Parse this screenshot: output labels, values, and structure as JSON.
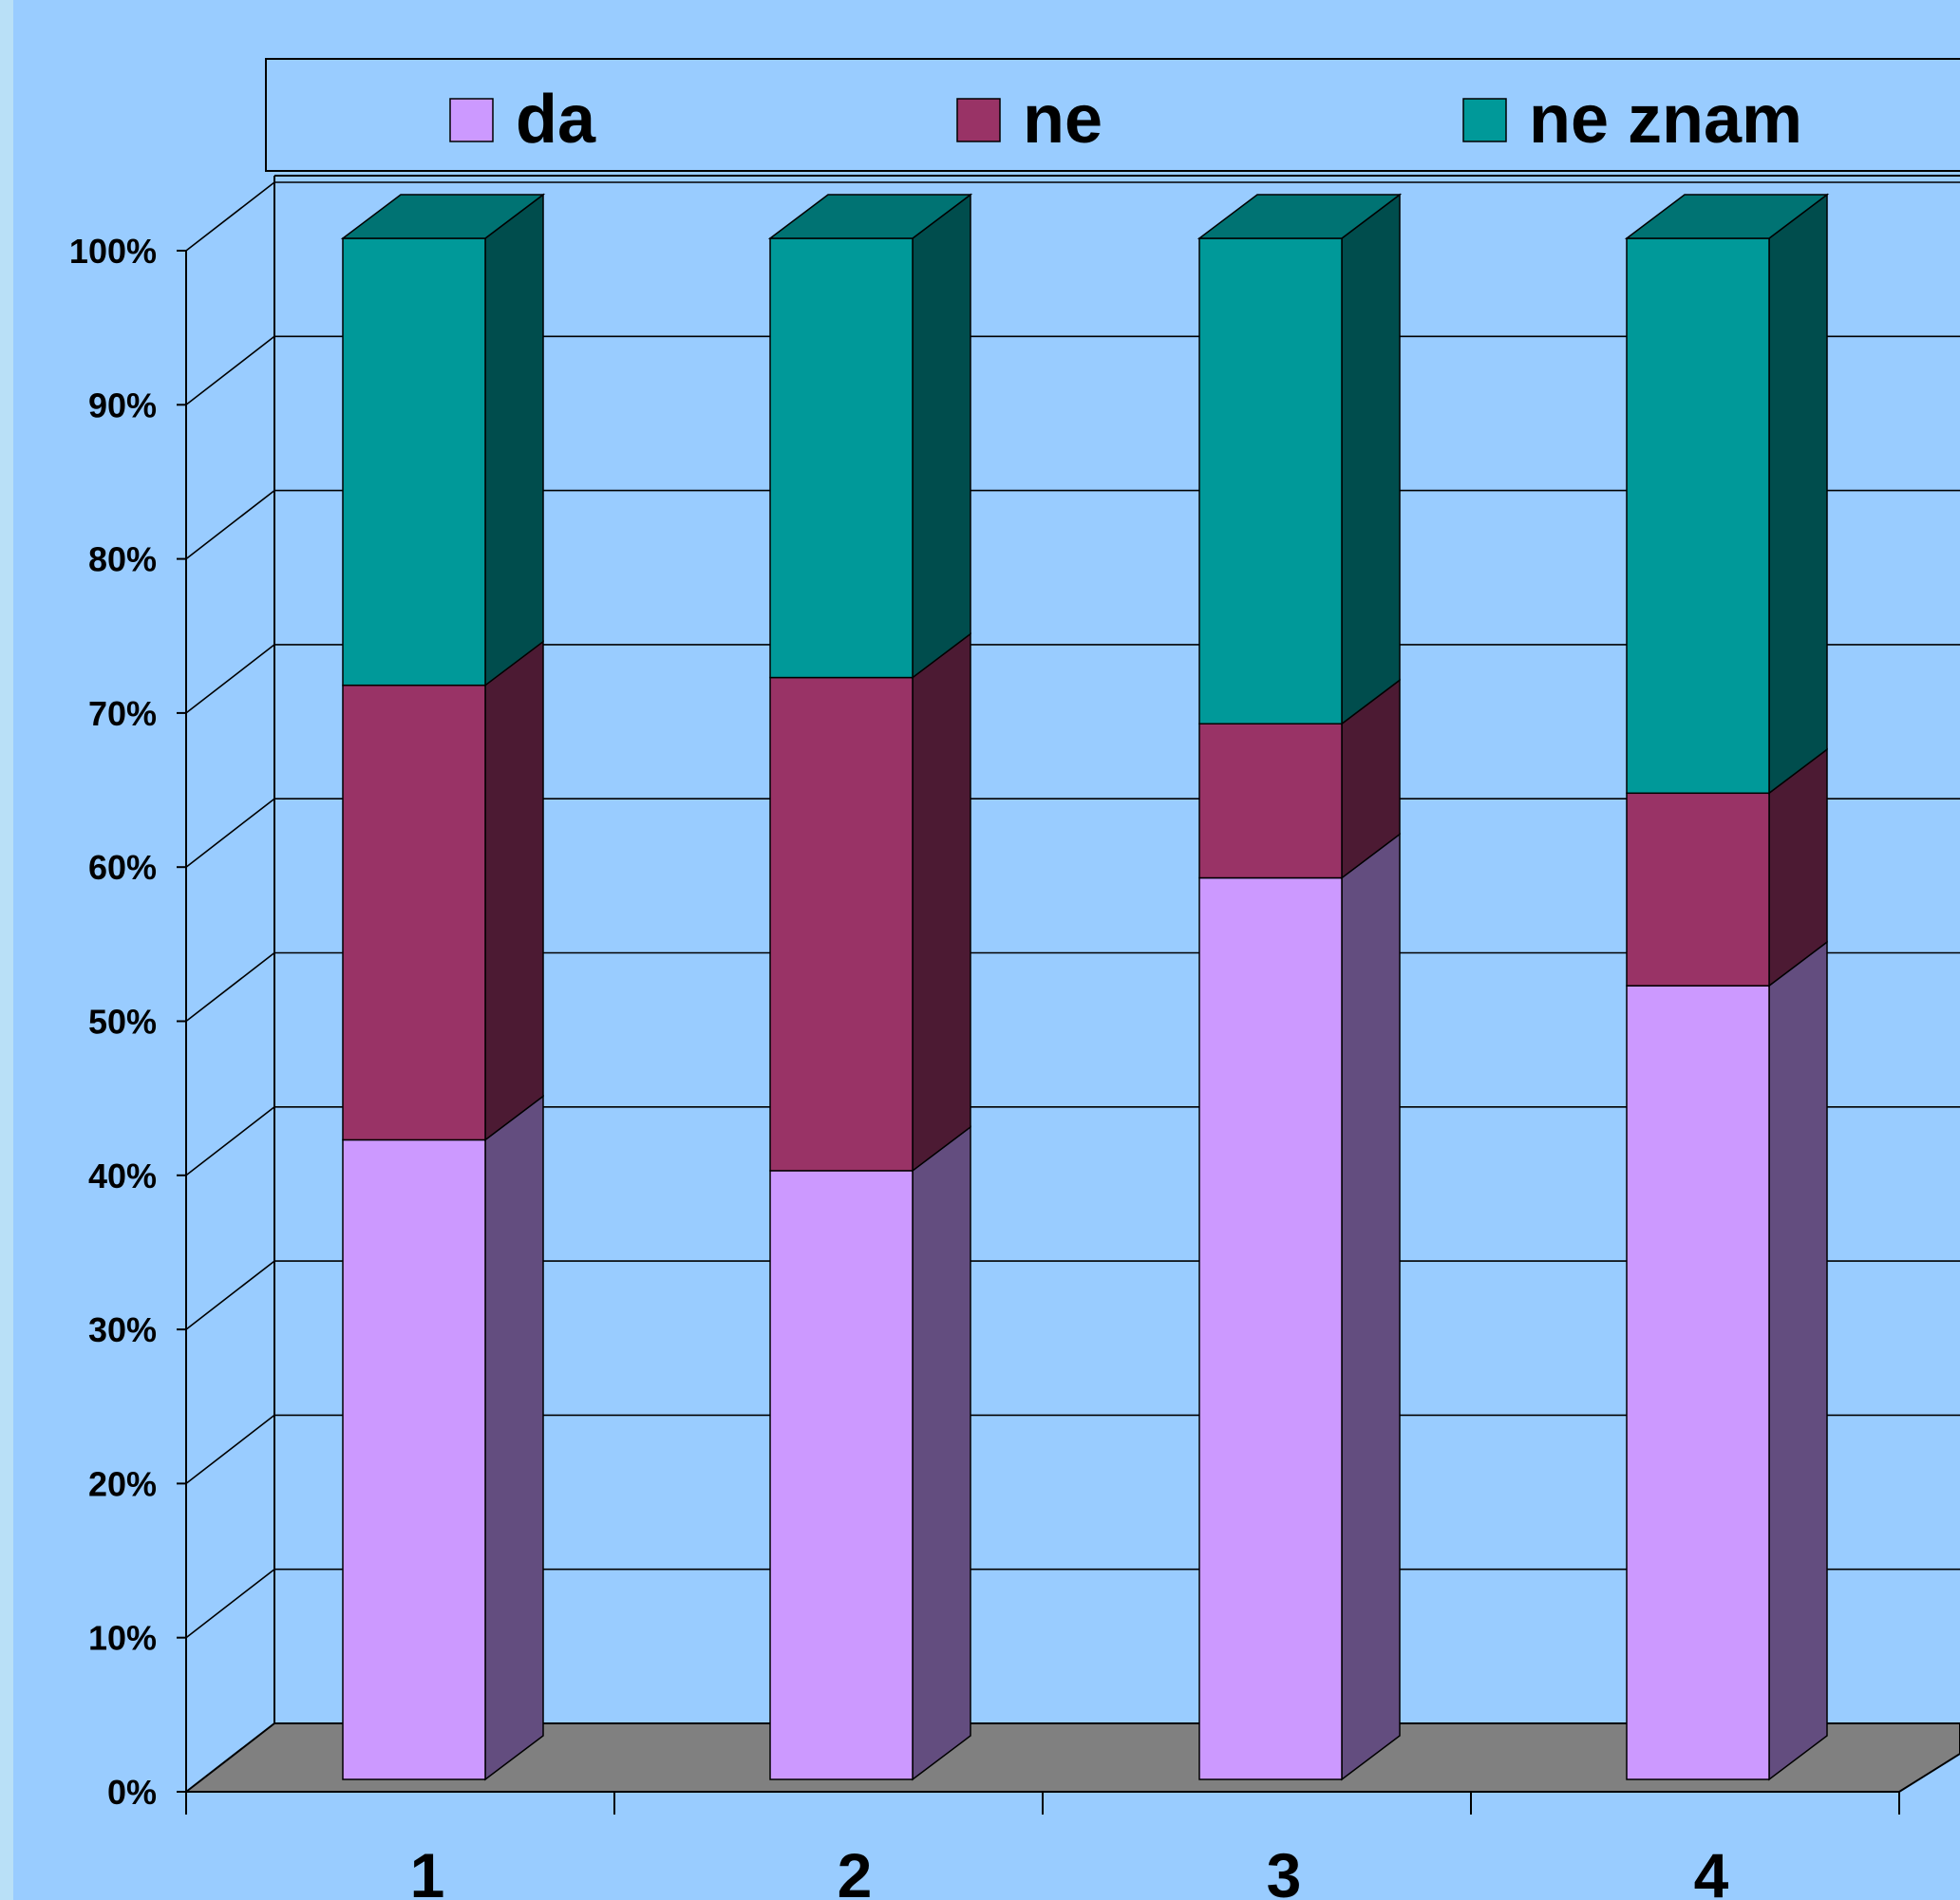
{
  "chart_data": {
    "type": "bar",
    "stacked": true,
    "percent": true,
    "three_d": true,
    "categories": [
      "1",
      "2",
      "3",
      "4"
    ],
    "series": [
      {
        "name": "da",
        "values": [
          41.5,
          39.5,
          58.5,
          51.5
        ]
      },
      {
        "name": "ne",
        "values": [
          29.5,
          32.0,
          10.0,
          12.5
        ]
      },
      {
        "name": "ne znam",
        "values": [
          29.0,
          28.5,
          31.5,
          36.0
        ]
      }
    ],
    "ylim": [
      0,
      100
    ],
    "yticks": [
      "0%",
      "10%",
      "20%",
      "30%",
      "40%",
      "50%",
      "60%",
      "70%",
      "80%",
      "90%",
      "100%"
    ],
    "grid": true,
    "legend_position": "top",
    "colors": {
      "da": {
        "front": "#cc99ff",
        "side": "#634d7f"
      },
      "ne": {
        "front": "#993366",
        "side": "#4c1a33"
      },
      "ne znam": {
        "front": "#009999",
        "side": "#004d4d",
        "top": "#007373"
      },
      "background": "#99ccff",
      "floor": "#808080"
    }
  }
}
